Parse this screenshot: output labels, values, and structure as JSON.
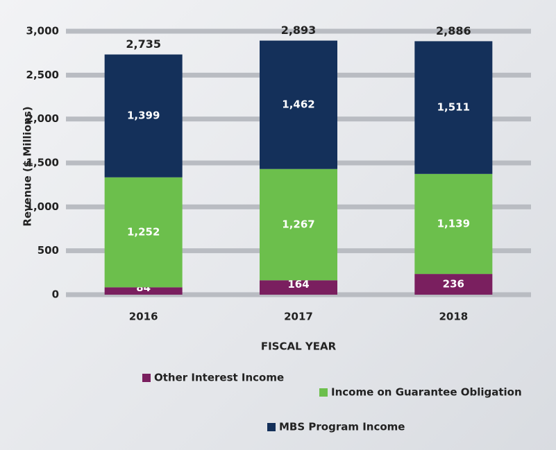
{
  "chart_data": {
    "type": "bar",
    "stacked": true,
    "categories": [
      "2016",
      "2017",
      "2018"
    ],
    "xlabel": "FISCAL YEAR",
    "ylabel": "Revenue ($ Millions)",
    "ylim": [
      0,
      3000
    ],
    "yticks": [
      0,
      500,
      {
        "value": 1000,
        "label": "1,000"
      },
      {
        "value": 1500,
        "label": "1,500"
      },
      {
        "value": 2000,
        "label": "2,000"
      },
      {
        "value": 2500,
        "label": "2,500"
      },
      {
        "value": 3000,
        "label": "3,000"
      }
    ],
    "grid": true,
    "series": [
      {
        "name": "Other Interest Income",
        "color": "#7a1f5f",
        "values": [
          84,
          164,
          236
        ]
      },
      {
        "name": "Income on Guarantee Obligation",
        "color": "#6cbf4c",
        "values": [
          1252,
          1267,
          1139
        ],
        "value_labels": [
          "1,252",
          "1,267",
          "1,139"
        ]
      },
      {
        "name": "MBS Program Income",
        "color": "#14305a",
        "values": [
          1399,
          1462,
          1511
        ],
        "value_labels": [
          "1,399",
          "1,462",
          "1,511"
        ]
      }
    ],
    "totals": [
      2735,
      2893,
      2886
    ],
    "total_labels": [
      "2,735",
      "2,893",
      "2,886"
    ]
  }
}
